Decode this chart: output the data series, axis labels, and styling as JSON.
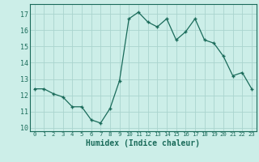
{
  "x": [
    0,
    1,
    2,
    3,
    4,
    5,
    6,
    7,
    8,
    9,
    10,
    11,
    12,
    13,
    14,
    15,
    16,
    17,
    18,
    19,
    20,
    21,
    22,
    23
  ],
  "y": [
    12.4,
    12.4,
    12.1,
    11.9,
    11.3,
    11.3,
    10.5,
    10.3,
    11.2,
    12.9,
    16.7,
    17.1,
    16.5,
    16.2,
    16.7,
    15.4,
    15.9,
    16.7,
    15.4,
    15.2,
    14.4,
    13.2,
    13.4,
    12.4
  ],
  "xlabel": "Humidex (Indice chaleur)",
  "xlim": [
    -0.5,
    23.5
  ],
  "ylim": [
    9.8,
    17.6
  ],
  "yticks": [
    10,
    11,
    12,
    13,
    14,
    15,
    16,
    17
  ],
  "xticks": [
    0,
    1,
    2,
    3,
    4,
    5,
    6,
    7,
    8,
    9,
    10,
    11,
    12,
    13,
    14,
    15,
    16,
    17,
    18,
    19,
    20,
    21,
    22,
    23
  ],
  "line_color": "#1a6b5a",
  "marker_color": "#1a6b5a",
  "bg_color": "#cceee8",
  "grid_color": "#aad4ce",
  "tick_color": "#1a6b5a",
  "label_color": "#1a6b5a"
}
